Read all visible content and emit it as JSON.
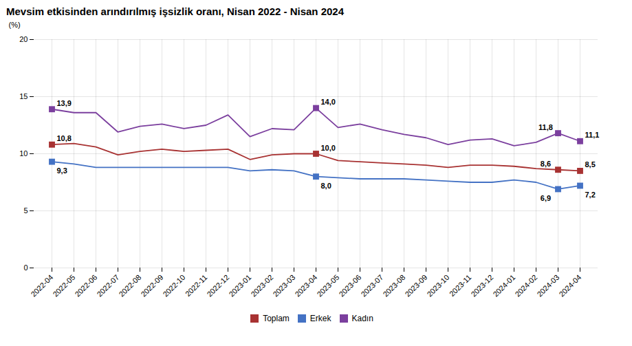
{
  "chart_data": {
    "type": "line",
    "title": "Mevsim etkisinden arındırılmış işsizlik oranı, Nisan 2022 - Nisan 2024",
    "ylabel": "(%)",
    "categories": [
      "2022-04",
      "2022-05",
      "2022-06",
      "2022-07",
      "2022-08",
      "2022-09",
      "2022-10",
      "2022-11",
      "2022-12",
      "2023-01",
      "2023-02",
      "2023-03",
      "2023-04",
      "2023-05",
      "2023-06",
      "2023-07",
      "2023-08",
      "2023-09",
      "2023-10",
      "2023-11",
      "2023-12",
      "2024-01",
      "2024-02",
      "2024-03",
      "2024-04"
    ],
    "series": [
      {
        "name": "Toplam",
        "color": "#a83232",
        "marker": "square",
        "values": [
          10.8,
          10.9,
          10.6,
          9.9,
          10.2,
          10.4,
          10.2,
          10.3,
          10.4,
          9.5,
          9.9,
          10.0,
          10.0,
          9.4,
          9.3,
          9.2,
          9.1,
          9.0,
          8.8,
          9.0,
          9.0,
          8.9,
          8.7,
          8.6,
          8.5
        ]
      },
      {
        "name": "Erkek",
        "color": "#4472c4",
        "marker": "square",
        "values": [
          9.3,
          9.1,
          8.8,
          8.8,
          8.8,
          8.8,
          8.8,
          8.8,
          8.8,
          8.5,
          8.6,
          8.5,
          8.0,
          7.9,
          7.8,
          7.8,
          7.8,
          7.7,
          7.6,
          7.5,
          7.5,
          7.7,
          7.5,
          6.9,
          7.2
        ]
      },
      {
        "name": "Kadın",
        "color": "#7b3f9e",
        "marker": "square",
        "values": [
          13.9,
          13.6,
          13.6,
          11.9,
          12.4,
          12.6,
          12.2,
          12.5,
          13.4,
          11.5,
          12.2,
          12.1,
          14.0,
          12.3,
          12.6,
          12.1,
          11.7,
          11.4,
          10.8,
          11.2,
          11.3,
          10.7,
          11.0,
          11.8,
          11.1
        ]
      }
    ],
    "ylim": [
      0,
      20
    ],
    "yticks": [
      0,
      5,
      10,
      15,
      20
    ],
    "grid": true,
    "legend": "bottom",
    "annotations": [
      {
        "series": "Kadın",
        "category": "2022-04",
        "value": 13.9,
        "label": "13,9"
      },
      {
        "series": "Toplam",
        "category": "2022-04",
        "value": 10.8,
        "label": "10,8"
      },
      {
        "series": "Erkek",
        "category": "2022-04",
        "value": 9.3,
        "label": "9,3"
      },
      {
        "series": "Kadın",
        "category": "2023-04",
        "value": 14.0,
        "label": "14,0"
      },
      {
        "series": "Toplam",
        "category": "2023-04",
        "value": 10.0,
        "label": "10,0"
      },
      {
        "series": "Erkek",
        "category": "2023-04",
        "value": 8.0,
        "label": "8,0"
      },
      {
        "series": "Kadın",
        "category": "2024-03",
        "value": 11.8,
        "label": "11,8"
      },
      {
        "series": "Toplam",
        "category": "2024-03",
        "value": 8.6,
        "label": "8,6"
      },
      {
        "series": "Erkek",
        "category": "2024-03",
        "value": 6.9,
        "label": "6,9"
      },
      {
        "series": "Kadın",
        "category": "2024-04",
        "value": 11.1,
        "label": "11,1"
      },
      {
        "series": "Toplam",
        "category": "2024-04",
        "value": 8.5,
        "label": "8,5"
      },
      {
        "series": "Erkek",
        "category": "2024-04",
        "value": 7.2,
        "label": "7,2"
      }
    ]
  }
}
